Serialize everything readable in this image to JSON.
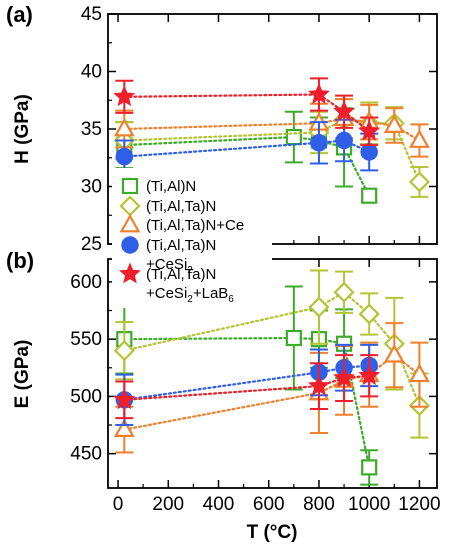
{
  "chart_data": [
    {
      "panel_label": "(a)",
      "type": "scatter",
      "ylabel": "H (GPa)",
      "ylim": [
        25,
        45
      ],
      "yticks": [
        25,
        30,
        35,
        40,
        45
      ],
      "xlim": [
        -40,
        1270
      ],
      "xticks": [
        0,
        200,
        400,
        600,
        800,
        1000,
        1200
      ],
      "connectors": "dotted",
      "series": [
        {
          "legend_index": 0,
          "x": [
            25,
            700,
            800,
            900,
            1000
          ],
          "y": [
            33.6,
            34.3,
            34.0,
            33.4,
            29.2
          ],
          "err": [
            2.0,
            2.2,
            2.0,
            3.4,
            0
          ]
        },
        {
          "legend_index": 1,
          "x": [
            25,
            800,
            900,
            1000,
            1100,
            1200
          ],
          "y": [
            34.0,
            34.7,
            35.8,
            35.5,
            35.5,
            30.4
          ],
          "err": [
            1.6,
            1.8,
            1.8,
            1.8,
            1.4,
            1.3
          ]
        },
        {
          "legend_index": 2,
          "x": [
            25,
            800,
            900,
            1000,
            1100,
            1200
          ],
          "y": [
            35.0,
            35.5,
            35.9,
            35.6,
            35.3,
            34.0
          ],
          "err": [
            1.6,
            1.7,
            1.7,
            1.5,
            1.5,
            1.4
          ]
        },
        {
          "legend_index": 3,
          "x": [
            25,
            800,
            900,
            1000
          ],
          "y": [
            32.6,
            33.8,
            34.0,
            33.0
          ],
          "err": [
            1.4,
            1.8,
            1.8,
            1.6
          ]
        },
        {
          "legend_index": 4,
          "x": [
            25,
            800,
            900,
            1000
          ],
          "y": [
            37.8,
            38.0,
            36.5,
            34.8
          ],
          "err": [
            1.4,
            1.4,
            1.4,
            1.2
          ]
        }
      ]
    },
    {
      "panel_label": "(b)",
      "type": "scatter",
      "ylabel": "E (GPa)",
      "xlabel": "T (°C)",
      "ylim": [
        420,
        620
      ],
      "yticks": [
        450,
        500,
        550,
        600
      ],
      "xlim": [
        -40,
        1270
      ],
      "xticks": [
        0,
        200,
        400,
        600,
        800,
        1000,
        1200
      ],
      "connectors": "dotted",
      "series": [
        {
          "legend_index": 0,
          "x": [
            25,
            700,
            800,
            900,
            1000
          ],
          "y": [
            550,
            551,
            550,
            546,
            438
          ],
          "err": [
            30,
            45,
            25,
            30,
            15
          ]
        },
        {
          "legend_index": 1,
          "x": [
            25,
            800,
            900,
            1000,
            1100,
            1200
          ],
          "y": [
            540,
            578,
            591,
            572,
            546,
            492
          ],
          "err": [
            25,
            32,
            18,
            18,
            40,
            28
          ]
        },
        {
          "legend_index": 2,
          "x": [
            25,
            800,
            900,
            1000,
            1100,
            1200
          ],
          "y": [
            471,
            503,
            514,
            519,
            536,
            519
          ],
          "err": [
            20,
            35,
            30,
            28,
            28,
            28
          ]
        },
        {
          "legend_index": 3,
          "x": [
            25,
            800,
            900,
            1000
          ],
          "y": [
            497,
            521,
            525,
            527
          ],
          "err": [
            22,
            20,
            20,
            18
          ]
        },
        {
          "legend_index": 4,
          "x": [
            25,
            800,
            900,
            1000
          ],
          "y": [
            497,
            509,
            516,
            518
          ],
          "err": [
            16,
            20,
            20,
            18
          ]
        }
      ]
    }
  ],
  "legend": {
    "placement": "inside-lower-left of panel (a), overlapping panel (b)",
    "entries": [
      {
        "marker": "square",
        "color": "#3cab2a",
        "filled": false,
        "line1": "(Ti,Al)N"
      },
      {
        "marker": "diamond",
        "color": "#b3c435",
        "filled": false,
        "line1": "(Ti,Al,Ta)N"
      },
      {
        "marker": "triangle",
        "color": "#f07f2c",
        "filled": false,
        "line1": "(Ti,Al,Ta)N+Ce"
      },
      {
        "marker": "circle",
        "color": "#2f5ee8",
        "filled": true,
        "line1": "(Ti,Al,Ta)N",
        "line2_prefix": "+CeSi",
        "line2_sub": "2"
      },
      {
        "marker": "star",
        "color": "#ee1f2a",
        "filled": true,
        "line1": "(Ti,Al,Ta)N",
        "line2_prefix": "+CeSi",
        "line2_sub": "2",
        "line2_mid": "+LaB",
        "line2_sub2": "6"
      }
    ]
  }
}
